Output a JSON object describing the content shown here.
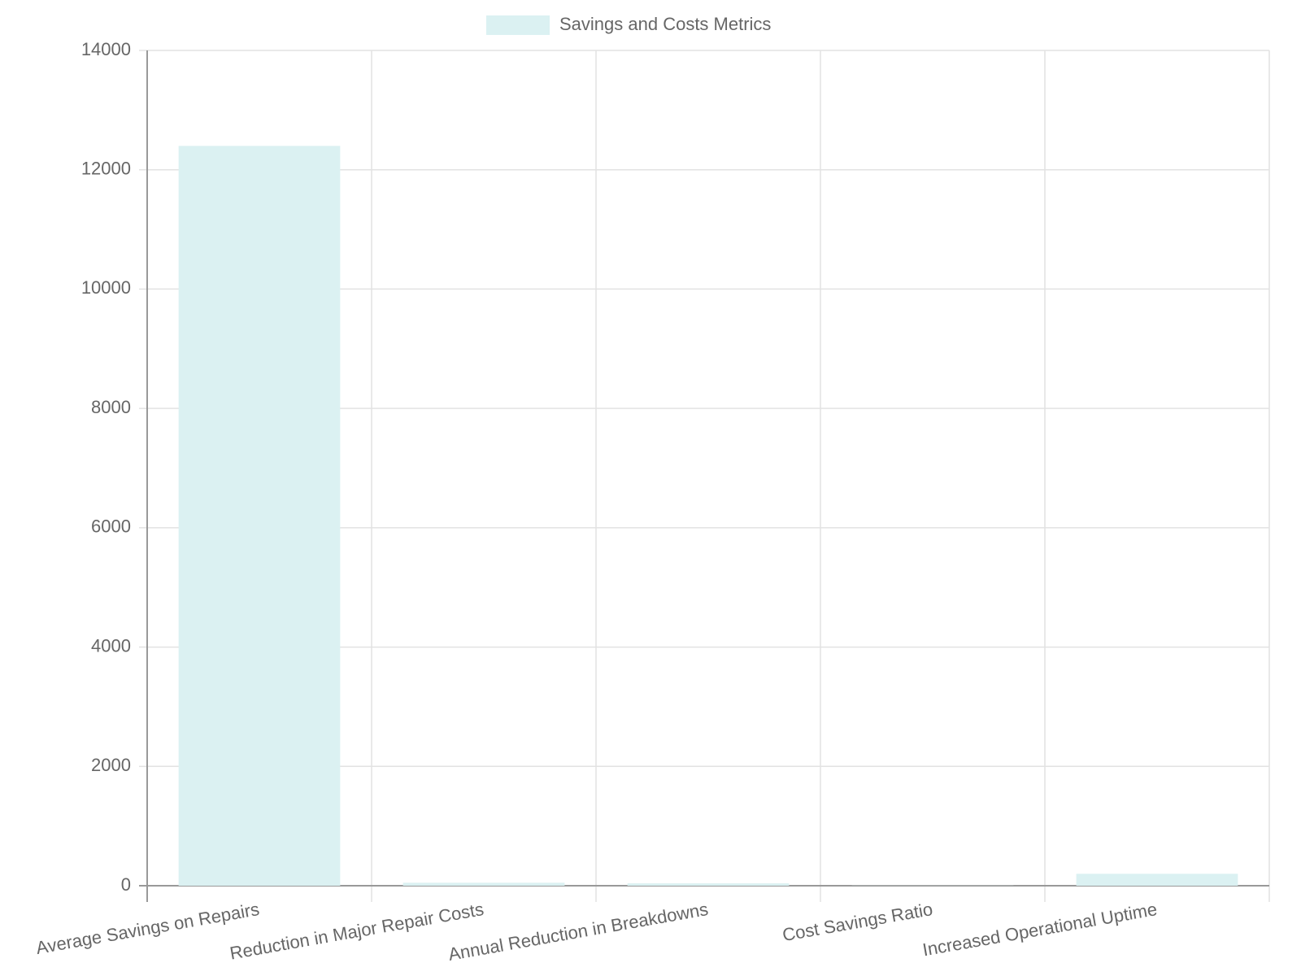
{
  "chart_data": {
    "type": "bar",
    "categories": [
      "Average Savings on Repairs",
      "Reduction in Major Repair Costs",
      "Annual Reduction in Breakdowns",
      "Cost Savings Ratio",
      "Increased Operational Uptime"
    ],
    "series": [
      {
        "name": "Savings and Costs Metrics",
        "color": "#dbf1f2",
        "values": [
          12400,
          50,
          40,
          3,
          200
        ]
      }
    ],
    "ylim": [
      0,
      14000
    ],
    "yticks": [
      0,
      2000,
      4000,
      6000,
      8000,
      10000,
      12000,
      14000
    ],
    "grid": true,
    "legend": "top"
  }
}
